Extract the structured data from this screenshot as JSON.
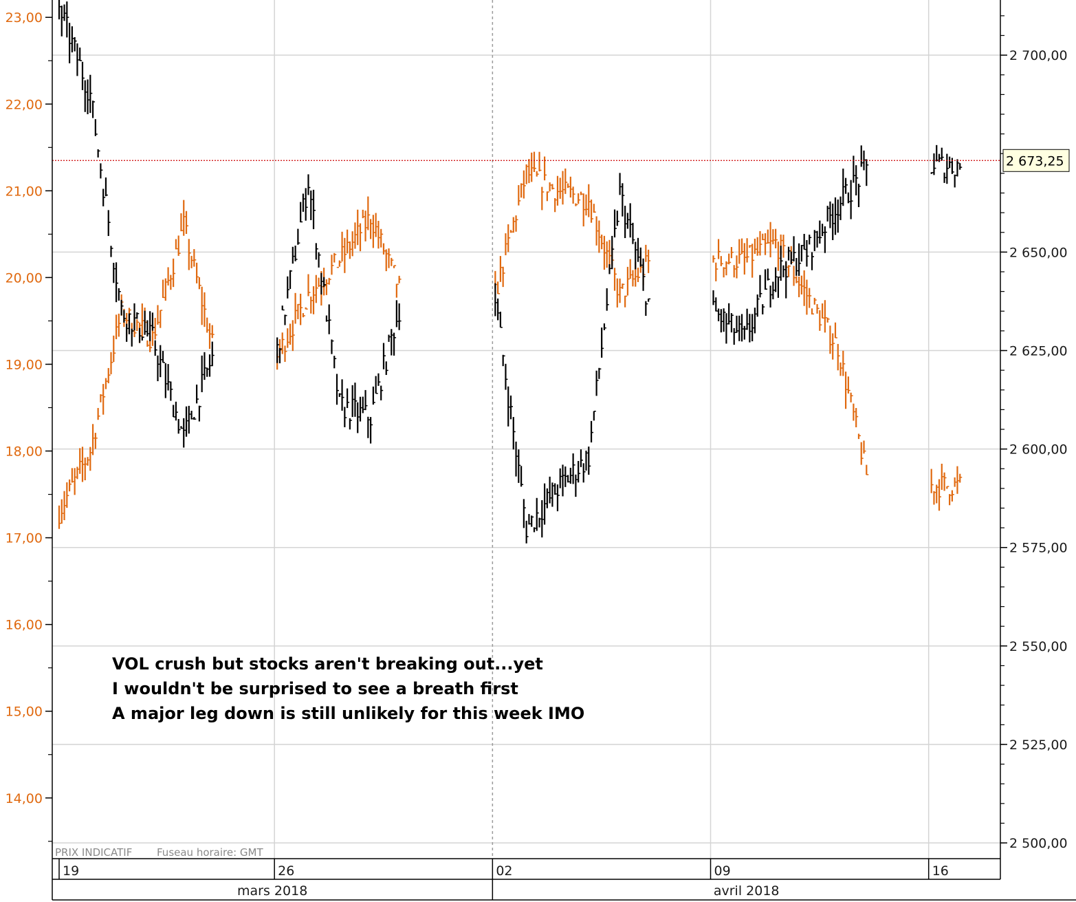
{
  "chart_data": {
    "type": "line",
    "style": "ohlc-bars",
    "grid": true,
    "x_ticks": [
      "19",
      "26",
      "02",
      "09",
      "16"
    ],
    "months": [
      "mars 2018",
      "avril 2018"
    ],
    "footer": {
      "price_label": "PRIX INDICATIF",
      "timezone_label": "Fuseau horaire: GMT"
    },
    "annotation_lines": [
      "VOL crush but stocks aren't breaking out...yet",
      "I wouldn't be surprised to see a breath first",
      "A major leg down is still unlikely for this week IMO"
    ],
    "left_axis": {
      "ticks": [
        "23,00",
        "22,00",
        "21,00",
        "20,00",
        "19,00",
        "18,00",
        "17,00",
        "16,00",
        "15,00",
        "14,00"
      ],
      "range": [
        13.3,
        23.2
      ],
      "color": "#E0690F"
    },
    "right_axis": {
      "ticks": [
        "2 700,00",
        "2 650,00",
        "2 625,00",
        "2 600,00",
        "2 575,00",
        "2 550,00",
        "2 525,00",
        "2 500,00"
      ],
      "range": [
        2496,
        2714
      ],
      "last_value_label": "2 673,25",
      "last_value": 2673.25,
      "reference_line_color": "#CC0000"
    },
    "series": [
      {
        "axis": "left",
        "color": "#E0690F",
        "x": [
          "2018-03-19",
          "2018-03-20",
          "2018-03-21",
          "2018-03-22",
          "2018-03-23",
          "2018-03-26",
          "2018-03-27",
          "2018-03-28",
          "2018-03-29",
          "2018-04-02",
          "2018-04-03",
          "2018-04-04",
          "2018-04-05",
          "2018-04-06",
          "2018-04-09",
          "2018-04-10",
          "2018-04-11",
          "2018-04-12",
          "2018-04-13",
          "2018-04-16"
        ],
        "values": [
          17.3,
          18.0,
          19.6,
          19.3,
          20.6,
          19.1,
          19.8,
          20.2,
          20.7,
          19.8,
          21.2,
          21.0,
          20.9,
          19.8,
          20.2,
          20.2,
          20.4,
          19.8,
          19.2,
          17.6
        ]
      },
      {
        "axis": "right",
        "color": "#000000",
        "x": [
          "2018-03-19",
          "2018-03-20",
          "2018-03-21",
          "2018-03-22",
          "2018-03-23",
          "2018-03-26",
          "2018-03-27",
          "2018-03-28",
          "2018-03-29",
          "2018-04-02",
          "2018-04-03",
          "2018-04-04",
          "2018-04-05",
          "2018-04-06",
          "2018-04-09",
          "2018-04-10",
          "2018-04-11",
          "2018-04-12",
          "2018-04-13",
          "2018-04-16"
        ],
        "values": [
          2712,
          2690,
          2635,
          2628,
          2603,
          2625,
          2668,
          2611,
          2608,
          2638,
          2580,
          2590,
          2598,
          2665,
          2635,
          2628,
          2645,
          2650,
          2662,
          2672
        ]
      }
    ]
  }
}
